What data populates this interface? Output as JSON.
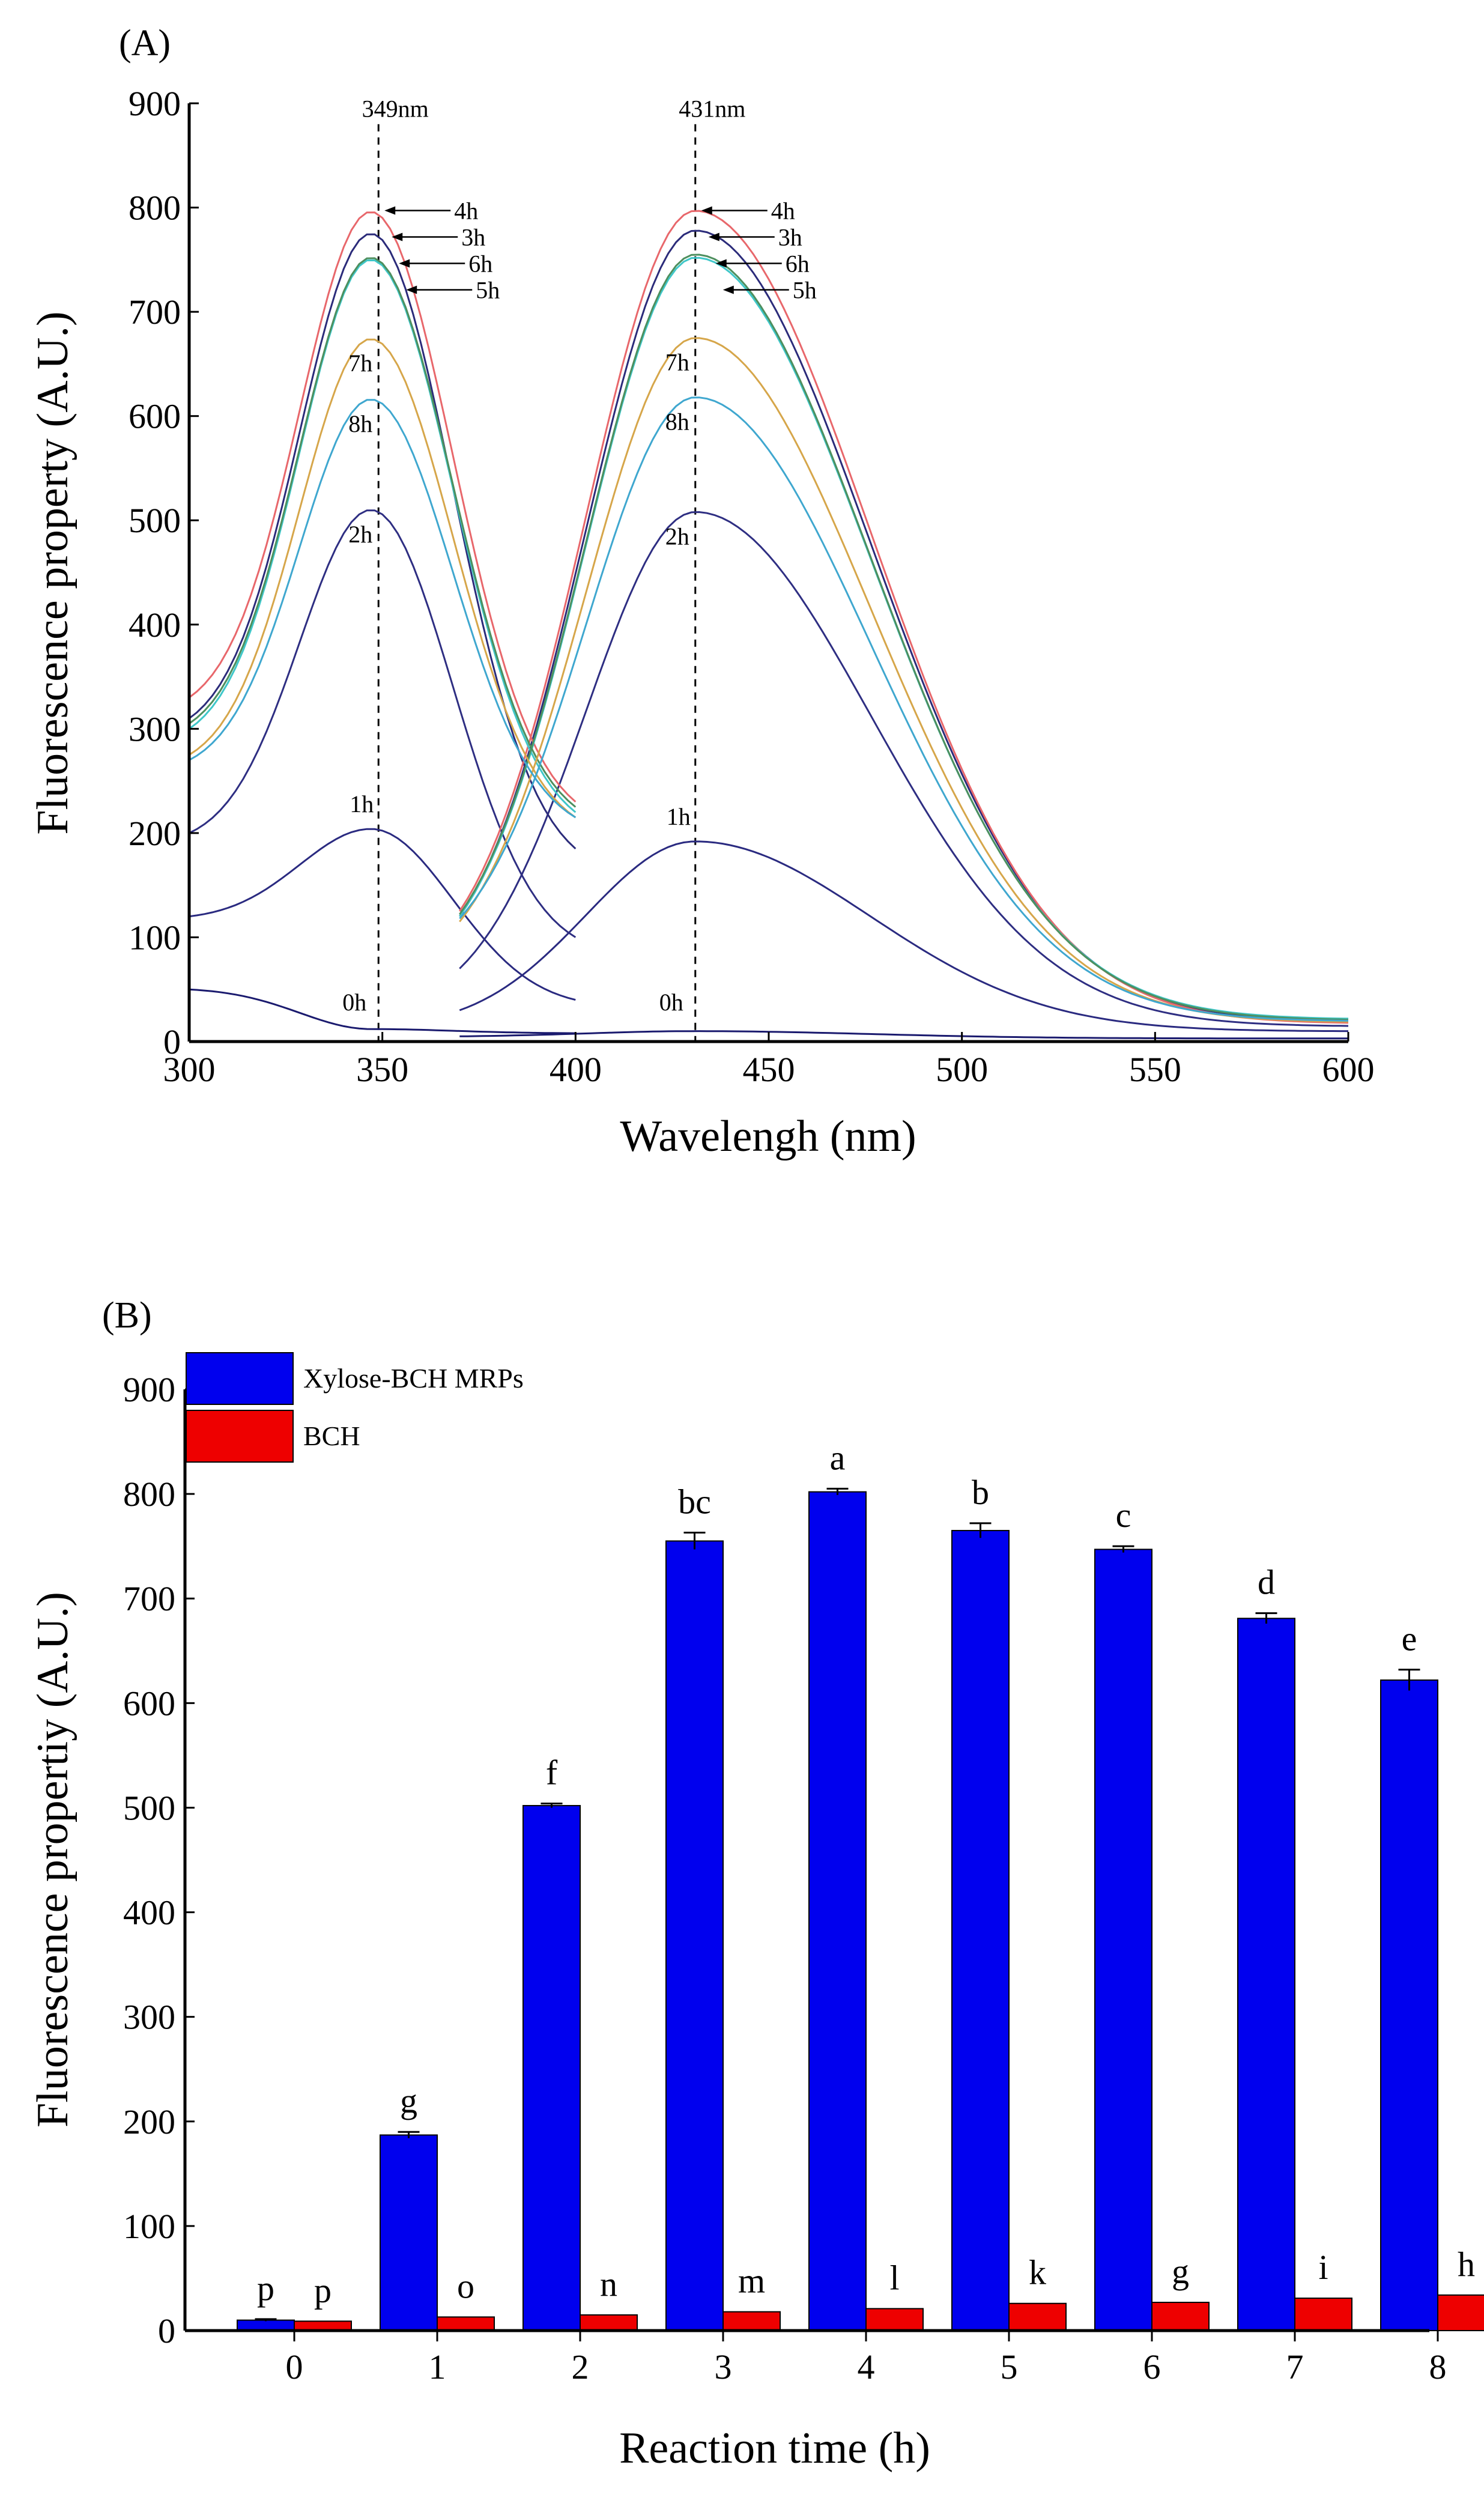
{
  "chart_data": [
    {
      "type": "line",
      "panel": "(A)",
      "title": "",
      "xlabel": "Wavelengh (nm)",
      "ylabel": "Fluorescence property (A.U.)",
      "xlim": [
        300,
        600
      ],
      "ylim": [
        0,
        900
      ],
      "xticks": [
        "300",
        "350",
        "400",
        "450",
        "500",
        "550",
        "600"
      ],
      "yticks": [
        "0",
        "100",
        "200",
        "300",
        "400",
        "500",
        "600",
        "700",
        "800",
        "900"
      ],
      "peak_markers": [
        {
          "x": 349,
          "label": "349nm"
        },
        {
          "x": 431,
          "label": "431nm"
        }
      ],
      "series": [
        {
          "name": "0h",
          "color": "#1a1a6e",
          "ex_peak": 12,
          "ex_start": 50,
          "ex_end": 8,
          "em_peak": 10,
          "em_start": 5,
          "em_end": 3
        },
        {
          "name": "1h",
          "color": "#2a2a80",
          "ex_peak": 204,
          "ex_start": 120,
          "ex_end": 40,
          "em_peak": 192,
          "em_start": 30,
          "em_end": 10
        },
        {
          "name": "2h",
          "color": "#2e2e82",
          "ex_peak": 510,
          "ex_start": 200,
          "ex_end": 100,
          "em_peak": 508,
          "em_start": 70,
          "em_end": 15
        },
        {
          "name": "3h",
          "color": "#2b2b7a",
          "ex_peak": 775,
          "ex_start": 310,
          "ex_end": 185,
          "em_peak": 778,
          "em_start": 120,
          "em_end": 20
        },
        {
          "name": "4h",
          "color": "#e8676b",
          "ex_peak": 796,
          "ex_start": 330,
          "ex_end": 230,
          "em_peak": 797,
          "em_start": 125,
          "em_end": 18
        },
        {
          "name": "5h",
          "color": "#3fc7c9",
          "ex_peak": 750,
          "ex_start": 300,
          "ex_end": 220,
          "em_peak": 752,
          "em_start": 120,
          "em_end": 22
        },
        {
          "name": "6h",
          "color": "#4d8f5e",
          "ex_peak": 752,
          "ex_start": 305,
          "ex_end": 225,
          "em_peak": 755,
          "em_start": 122,
          "em_end": 21
        },
        {
          "name": "7h",
          "color": "#d6a64a",
          "ex_peak": 674,
          "ex_start": 275,
          "ex_end": 215,
          "em_peak": 675,
          "em_start": 115,
          "em_end": 19
        },
        {
          "name": "8h",
          "color": "#3fa7cf",
          "ex_peak": 616,
          "ex_start": 270,
          "ex_end": 215,
          "em_peak": 618,
          "em_start": 118,
          "em_end": 20
        }
      ]
    },
    {
      "type": "bar",
      "panel": "(B)",
      "title": "",
      "xlabel": "Reaction time (h)",
      "ylabel": "Fluorescence propertiy (A.U.)",
      "ylim": [
        0,
        900
      ],
      "yticks": [
        "0",
        "100",
        "200",
        "300",
        "400",
        "500",
        "600",
        "700",
        "800",
        "900"
      ],
      "categories": [
        "0",
        "1",
        "2",
        "3",
        "4",
        "5",
        "6",
        "7",
        "8"
      ],
      "legend_position": "top-left",
      "series": [
        {
          "name": "Xylose-BCH MRPs",
          "color": "#0000ee",
          "values": [
            10,
            187,
            502,
            755,
            802,
            765,
            747,
            681,
            622
          ],
          "errors": [
            1,
            3,
            2,
            8,
            3,
            7,
            3,
            5,
            10
          ],
          "letters": [
            "p",
            "g",
            "f",
            "bc",
            "a",
            "b",
            "c",
            "d",
            "e"
          ]
        },
        {
          "name": "BCH",
          "color": "#ee0000",
          "values": [
            9,
            13,
            15,
            18,
            21,
            26,
            27,
            31,
            34
          ],
          "errors": [
            0,
            0,
            0,
            0,
            0,
            0,
            0,
            0,
            0
          ],
          "letters": [
            "p",
            "o",
            "n",
            "m",
            "l",
            "k",
            "g",
            "i",
            "h"
          ]
        }
      ]
    }
  ]
}
